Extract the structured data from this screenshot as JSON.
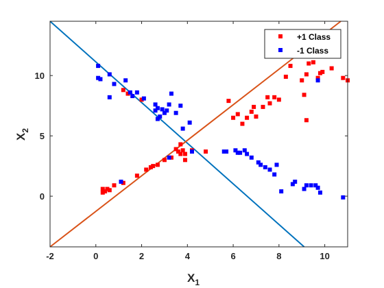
{
  "chart_data": {
    "type": "scatter",
    "xlabel": {
      "main": "X",
      "sub": "1"
    },
    "ylabel": {
      "main": "X",
      "sub": "2"
    },
    "xlim": [
      -2,
      11
    ],
    "ylim": [
      -4.2,
      14.5
    ],
    "xticks": [
      -2,
      0,
      2,
      4,
      6,
      8,
      10
    ],
    "yticks": [
      0,
      5,
      10
    ],
    "grid": false,
    "legend_position": "top-right",
    "series": [
      {
        "name": "+1 Class",
        "color": "#ff0000",
        "marker": "square",
        "points": [
          [
            0.3,
            0.3
          ],
          [
            0.3,
            0.6
          ],
          [
            0.4,
            0.4
          ],
          [
            0.5,
            0.6
          ],
          [
            0.6,
            0.5
          ],
          [
            0.8,
            0.9
          ],
          [
            1.2,
            1.1
          ],
          [
            1.8,
            1.7
          ],
          [
            2.2,
            2.2
          ],
          [
            2.4,
            2.4
          ],
          [
            2.5,
            2.5
          ],
          [
            2.7,
            2.6
          ],
          [
            3.0,
            3.0
          ],
          [
            3.3,
            3.2
          ],
          [
            3.5,
            3.9
          ],
          [
            3.6,
            3.7
          ],
          [
            3.7,
            3.5
          ],
          [
            3.8,
            3.8
          ],
          [
            3.9,
            3.5
          ],
          [
            3.7,
            4.3
          ],
          [
            4.2,
            3.8
          ],
          [
            3.9,
            3.0
          ],
          [
            4.8,
            3.7
          ],
          [
            1.2,
            8.8
          ],
          [
            1.4,
            8.5
          ],
          [
            2.0,
            8.0
          ],
          [
            5.8,
            7.9
          ],
          [
            6.0,
            6.5
          ],
          [
            6.2,
            6.8
          ],
          [
            6.4,
            6.0
          ],
          [
            6.6,
            6.5
          ],
          [
            6.8,
            7.0
          ],
          [
            6.9,
            7.4
          ],
          [
            7.0,
            6.6
          ],
          [
            7.3,
            7.4
          ],
          [
            7.5,
            8.2
          ],
          [
            7.6,
            7.7
          ],
          [
            7.8,
            8.2
          ],
          [
            8.0,
            8.0
          ],
          [
            8.3,
            9.9
          ],
          [
            8.5,
            10.8
          ],
          [
            9.0,
            9.6
          ],
          [
            9.2,
            10.1
          ],
          [
            9.3,
            11.0
          ],
          [
            9.5,
            11.1
          ],
          [
            9.7,
            9.8
          ],
          [
            9.8,
            10.2
          ],
          [
            9.9,
            10.3
          ],
          [
            10.3,
            10.6
          ],
          [
            10.8,
            9.8
          ],
          [
            11.0,
            9.6
          ],
          [
            9.2,
            6.3
          ],
          [
            9.1,
            8.4
          ]
        ]
      },
      {
        "name": "-1 Class",
        "color": "#0000ff",
        "marker": "square",
        "points": [
          [
            0.1,
            10.8
          ],
          [
            0.1,
            9.8
          ],
          [
            0.2,
            9.7
          ],
          [
            0.6,
            10.1
          ],
          [
            0.8,
            9.3
          ],
          [
            0.6,
            8.2
          ],
          [
            1.3,
            9.6
          ],
          [
            1.5,
            8.6
          ],
          [
            1.6,
            8.3
          ],
          [
            1.8,
            8.6
          ],
          [
            2.1,
            8.1
          ],
          [
            1.1,
            1.2
          ],
          [
            2.6,
            7.6
          ],
          [
            2.7,
            7.3
          ],
          [
            2.8,
            6.6
          ],
          [
            2.9,
            7.2
          ],
          [
            3.0,
            6.9
          ],
          [
            3.1,
            7.1
          ],
          [
            3.2,
            7.6
          ],
          [
            3.3,
            8.5
          ],
          [
            3.5,
            6.9
          ],
          [
            3.7,
            7.5
          ],
          [
            3.8,
            5.6
          ],
          [
            4.1,
            6.1
          ],
          [
            2.7,
            6.4
          ],
          [
            3.2,
            3.2
          ],
          [
            4.2,
            3.7
          ],
          [
            5.6,
            3.7
          ],
          [
            5.7,
            3.7
          ],
          [
            6.1,
            3.8
          ],
          [
            6.2,
            3.6
          ],
          [
            6.3,
            3.6
          ],
          [
            6.5,
            3.8
          ],
          [
            6.6,
            3.5
          ],
          [
            6.8,
            3.2
          ],
          [
            7.1,
            2.8
          ],
          [
            7.2,
            2.6
          ],
          [
            7.4,
            2.4
          ],
          [
            7.6,
            2.2
          ],
          [
            7.8,
            1.8
          ],
          [
            7.9,
            2.6
          ],
          [
            8.1,
            0.4
          ],
          [
            8.6,
            1.0
          ],
          [
            8.7,
            1.2
          ],
          [
            9.1,
            0.6
          ],
          [
            9.2,
            0.9
          ],
          [
            9.4,
            0.9
          ],
          [
            9.6,
            0.9
          ],
          [
            9.8,
            0.3
          ],
          [
            9.7,
            0.7
          ],
          [
            10.8,
            -0.1
          ],
          [
            9.7,
            9.6
          ],
          [
            2.6,
            7.1
          ]
        ]
      }
    ],
    "lines": [
      {
        "color": "#0072bd",
        "points": [
          [
            -2,
            14.5
          ],
          [
            9.1,
            -4.2
          ]
        ]
      },
      {
        "color": "#d95319",
        "points": [
          [
            -2,
            -4.2
          ],
          [
            10.7,
            14.5
          ]
        ]
      }
    ]
  }
}
